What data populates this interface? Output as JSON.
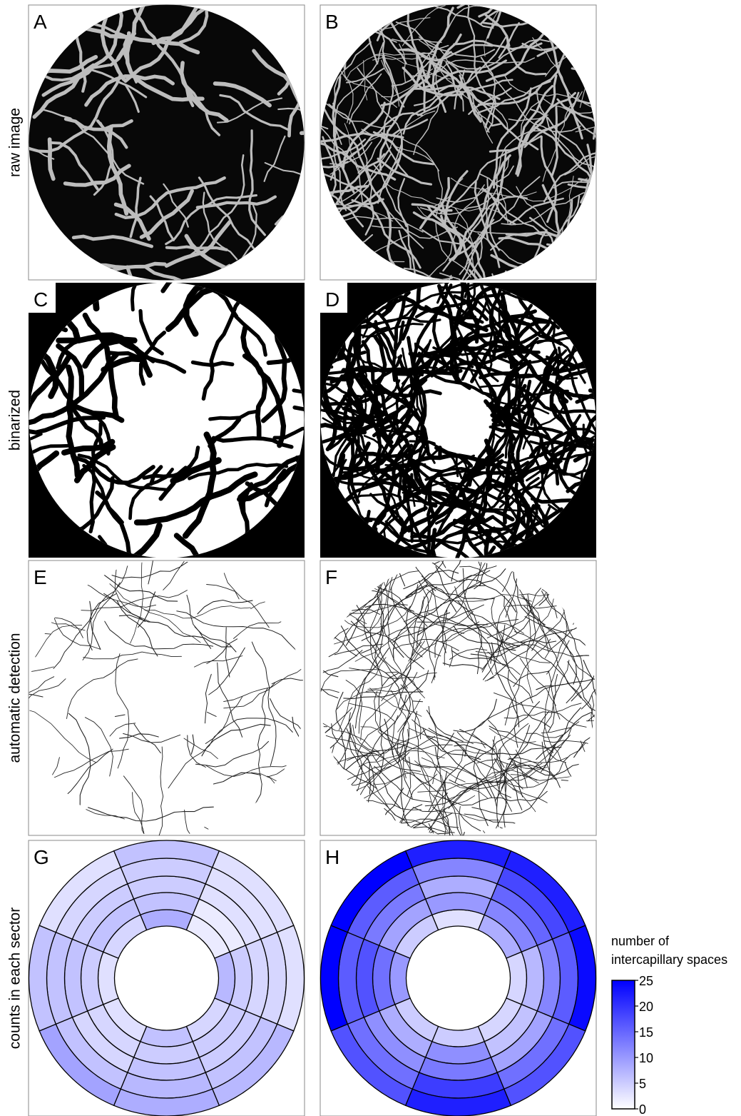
{
  "figure": {
    "row_labels": [
      "raw image",
      "binarized",
      "automatic detection",
      "counts in each sector"
    ],
    "panels": [
      "A",
      "B",
      "C",
      "D",
      "E",
      "F",
      "G",
      "H"
    ]
  },
  "chart_data": [
    {
      "type": "polar-heatmap",
      "values": [
        [
          8,
          2,
          7,
          4,
          6,
          3,
          3,
          4
        ],
        [
          6,
          2,
          5,
          5,
          5,
          4,
          5,
          6
        ],
        [
          5,
          3,
          4,
          5,
          6,
          4,
          6,
          5
        ],
        [
          5,
          3,
          4,
          6,
          7,
          6,
          6,
          4
        ],
        [
          6,
          3,
          3,
          7,
          8,
          9,
          6,
          3
        ]
      ]
    },
    {
      "type": "polar-heatmap",
      "values": [
        [
          3,
          8,
          4,
          4,
          5,
          5,
          10,
          5
        ],
        [
          10,
          12,
          7,
          6,
          11,
          8,
          14,
          9
        ],
        [
          8,
          15,
          12,
          9,
          13,
          11,
          17,
          13
        ],
        [
          12,
          18,
          16,
          14,
          19,
          14,
          16,
          16
        ],
        [
          22,
          22,
          24,
          17,
          22,
          17,
          25,
          25
        ]
      ]
    }
  ],
  "colorbar": {
    "title": [
      "number of",
      "intercapillary spaces"
    ],
    "lim": [
      0,
      25
    ],
    "ticks": [
      0,
      5,
      10,
      15,
      20,
      25
    ],
    "colors": [
      "#ffffff",
      "#0000ff"
    ]
  }
}
